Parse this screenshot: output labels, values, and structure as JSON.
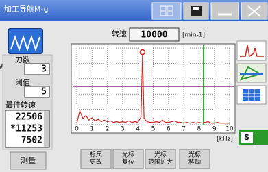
{
  "window": {
    "title": "加工导航M-g"
  },
  "speed": {
    "label": "转速",
    "value": "10000",
    "unit": "[min-1]"
  },
  "left_panel": {
    "teeth_label": "刀数",
    "teeth": "3",
    "threshold_label": "阈值",
    "threshold": "5",
    "best_label": "最佳转速",
    "best_speeds": [
      "22506",
      "*11253",
      "7502"
    ],
    "measure_button": "测量"
  },
  "buttons": [
    [
      "标尺",
      "更改"
    ],
    [
      "光标",
      "复位"
    ],
    [
      "光标",
      "范围扩大"
    ],
    [
      "光标",
      "移动"
    ]
  ],
  "side_button": "S",
  "chart_data": {
    "type": "line",
    "color": "#c8261e",
    "x": [
      0,
      0.2,
      0.4,
      0.6,
      0.8,
      1.0,
      1.2,
      1.4,
      1.6,
      1.8,
      2.0,
      2.2,
      2.4,
      2.6,
      2.8,
      3.0,
      3.2,
      3.4,
      3.6,
      3.8,
      4.0,
      4.2,
      4.3,
      4.4,
      4.6,
      4.8,
      5.0,
      5.2,
      5.4,
      5.6,
      5.8,
      6.0,
      6.2,
      6.4,
      6.6,
      6.8,
      7.0,
      7.2,
      7.4,
      7.6,
      7.8,
      8.0,
      8.2,
      8.4,
      8.6,
      8.8,
      9.0,
      9.2,
      9.4,
      9.6,
      9.8,
      10.0
    ],
    "values": [
      2,
      18,
      8,
      12,
      6,
      9,
      5,
      7,
      4,
      6,
      4,
      5,
      3,
      4,
      3,
      4,
      3,
      5,
      3,
      4,
      3,
      10,
      91,
      8,
      4,
      3,
      3,
      4,
      3,
      6,
      3,
      3,
      4,
      5,
      3,
      3,
      2,
      3,
      2,
      3,
      2,
      3,
      2,
      3,
      4,
      2,
      2,
      3,
      2,
      2,
      2,
      2
    ],
    "xlim": [
      0,
      10
    ],
    "xticks": [
      0,
      1,
      2,
      3,
      4,
      5,
      6,
      7,
      8,
      9,
      10
    ],
    "ylim": [
      0,
      100
    ],
    "x_unit": "[kHz]",
    "threshold": 50,
    "threshold_color": "#8a2a8a",
    "cursor_x": 8.3,
    "cursor_color": "#2a9a2a",
    "peak_index": 22,
    "grid": true
  }
}
